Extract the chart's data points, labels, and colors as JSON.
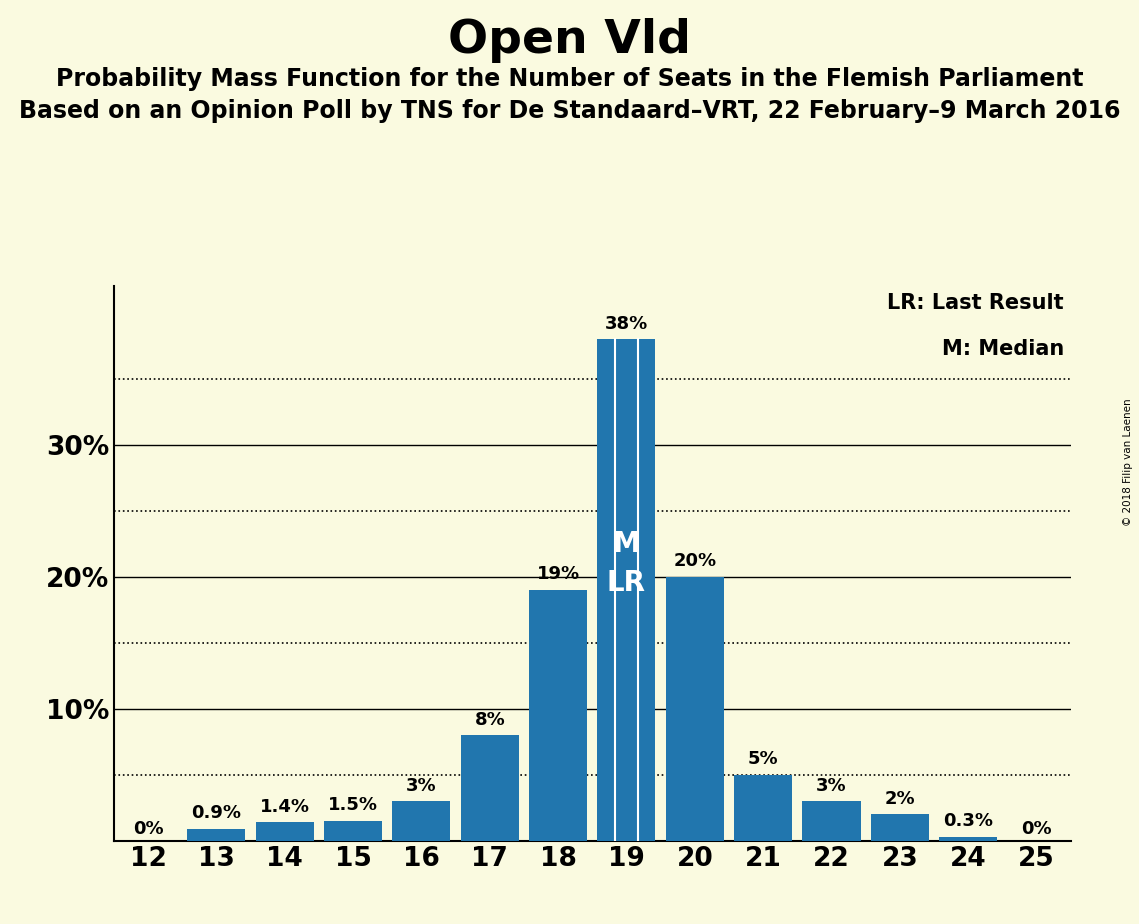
{
  "title": "Open Vld",
  "subtitle1": "Probability Mass Function for the Number of Seats in the Flemish Parliament",
  "subtitle2": "Based on an Opinion Poll by TNS for De Standaard–VRT, 22 February–9 March 2016",
  "copyright": "© 2018 Filip van Laenen",
  "seats": [
    12,
    13,
    14,
    15,
    16,
    17,
    18,
    19,
    20,
    21,
    22,
    23,
    24,
    25
  ],
  "probabilities": [
    0.0,
    0.9,
    1.4,
    1.5,
    3.0,
    8.0,
    19.0,
    38.0,
    20.0,
    5.0,
    3.0,
    2.0,
    0.3,
    0.0
  ],
  "bar_color": "#2176AE",
  "background_color": "#FAFAE0",
  "median_seat": 19,
  "last_result_seat": 19,
  "legend_lr": "LR: Last Result",
  "legend_m": "M: Median",
  "label_fontsize": 13,
  "title_fontsize": 34,
  "subtitle_fontsize": 17,
  "axis_tick_fontsize": 19,
  "solid_lines": [
    10,
    20,
    30
  ],
  "dotted_lines": [
    5,
    15,
    25,
    35
  ],
  "ylim": [
    0,
    42
  ]
}
